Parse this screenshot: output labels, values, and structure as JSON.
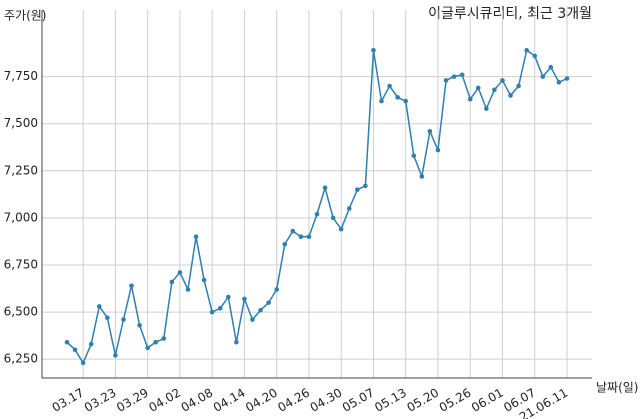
{
  "chart_data": {
    "type": "line",
    "title": "이글루시큐리티, 최근 3개월",
    "y_label": "주가(원)",
    "x_label": "날짜(일)",
    "categories": [
      null,
      null,
      "03.17",
      null,
      null,
      null,
      "03.23",
      null,
      null,
      null,
      "03.29",
      null,
      null,
      null,
      "04.02",
      null,
      null,
      null,
      "04.08",
      null,
      null,
      null,
      "04.14",
      null,
      null,
      null,
      "04.20",
      null,
      null,
      null,
      "04.26",
      null,
      null,
      null,
      "04.30",
      null,
      null,
      null,
      "05.07",
      null,
      null,
      null,
      "05.13",
      null,
      null,
      null,
      "05.20",
      null,
      null,
      null,
      "05.26",
      null,
      null,
      null,
      "06.01",
      null,
      null,
      null,
      "06.07",
      null,
      null,
      null,
      "21.06.11"
    ],
    "values": [
      6340,
      6300,
      6230,
      6330,
      6530,
      6470,
      6270,
      6460,
      6640,
      6430,
      6310,
      6340,
      6360,
      6660,
      6710,
      6620,
      6900,
      6670,
      6500,
      6520,
      6580,
      6340,
      6570,
      6460,
      6510,
      6550,
      6620,
      6860,
      6930,
      6900,
      6900,
      7020,
      7160,
      7000,
      6940,
      7050,
      7150,
      7170,
      7890,
      7620,
      7700,
      7640,
      7620,
      7330,
      7220,
      7460,
      7360,
      7730,
      7750,
      7760,
      7630,
      7690,
      7580,
      7680,
      7730,
      7650,
      7700,
      7890,
      7860,
      7750,
      7800,
      7720,
      7740
    ],
    "color": "#2f7fb0",
    "grid": true,
    "ylim": [
      6150,
      8040
    ],
    "yticks": [
      {
        "value": 6250,
        "label": "6,250"
      },
      {
        "value": 6500,
        "label": "6,500"
      },
      {
        "value": 6750,
        "label": "6,750"
      },
      {
        "value": 7000,
        "label": "7,000"
      },
      {
        "value": 7250,
        "label": "7,250"
      },
      {
        "value": 7500,
        "label": "7,500"
      },
      {
        "value": 7750,
        "label": "7,750"
      }
    ]
  }
}
